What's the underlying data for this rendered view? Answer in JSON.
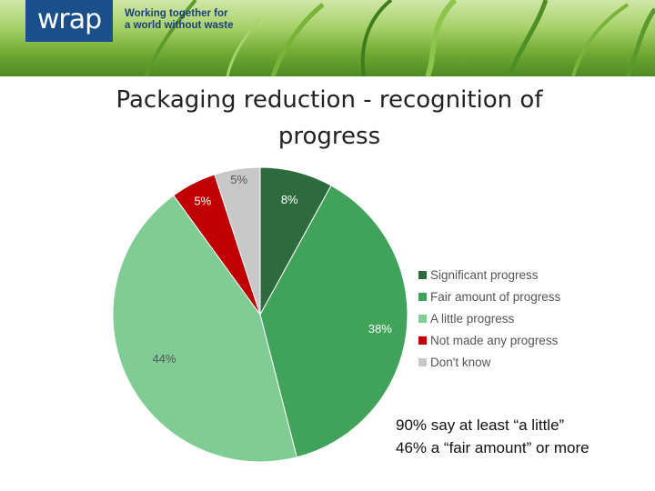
{
  "header": {
    "logo_text": "wrap",
    "tagline_line1": "Working together for",
    "tagline_line2": "a world without waste"
  },
  "slide": {
    "title_line1": "Packaging reduction - recognition of",
    "title_line2": "progress"
  },
  "chart_data": {
    "type": "pie",
    "title": "Packaging reduction - recognition of progress",
    "categories": [
      "Significant progress",
      "Fair amount of progress",
      "A little progress",
      "Not made any progress",
      "Don't know"
    ],
    "values": [
      8,
      38,
      44,
      5,
      5
    ],
    "labels": [
      "8%",
      "38%",
      "44%",
      "5%",
      "5%"
    ],
    "colors": [
      "#2e6b3c",
      "#41a35a",
      "#7fcc94",
      "#c00000",
      "#c8c8c8"
    ],
    "legend_position": "right"
  },
  "notes": {
    "line1": "90% say at least “a little”",
    "line2": "46% a “fair amount” or more"
  }
}
